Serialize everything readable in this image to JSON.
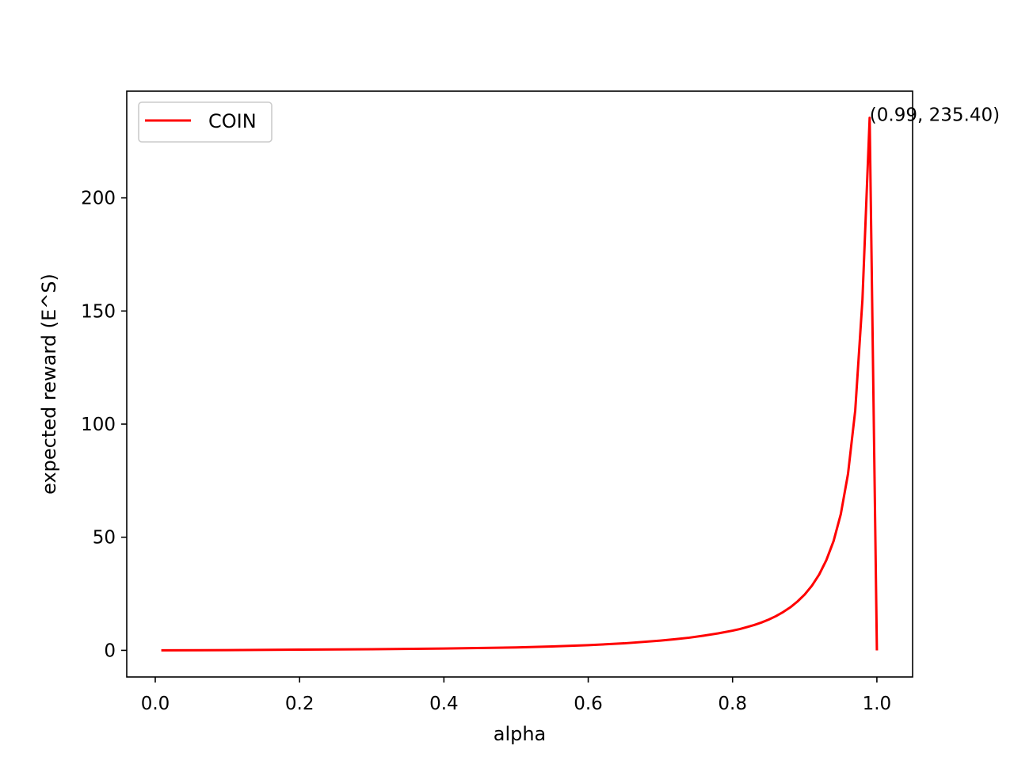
{
  "chart_data": {
    "type": "line",
    "title": "",
    "xlabel": "alpha",
    "ylabel": "expected reward (E^S)",
    "xlim": [
      -0.0395,
      1.0495
    ],
    "ylim": [
      -11.77,
      247.17
    ],
    "xticks": [
      0.0,
      0.2,
      0.4,
      0.6,
      0.8,
      1.0
    ],
    "xtick_labels": [
      "0.0",
      "0.2",
      "0.4",
      "0.6",
      "0.8",
      "1.0"
    ],
    "yticks": [
      0,
      50,
      100,
      150,
      200
    ],
    "ytick_labels": [
      "0",
      "50",
      "100",
      "150",
      "200"
    ],
    "grid": false,
    "legend": {
      "placement": "top-left",
      "entries": [
        "COIN"
      ]
    },
    "colors": {
      "series": "#ff0000"
    },
    "series": [
      {
        "name": "COIN",
        "x": [
          0.01,
          0.1,
          0.2,
          0.3,
          0.4,
          0.5,
          0.55,
          0.6,
          0.65,
          0.7,
          0.72,
          0.74,
          0.76,
          0.78,
          0.8,
          0.81,
          0.82,
          0.83,
          0.84,
          0.85,
          0.86,
          0.87,
          0.88,
          0.89,
          0.9,
          0.91,
          0.92,
          0.93,
          0.94,
          0.95,
          0.96,
          0.97,
          0.98,
          0.99,
          1.0
        ],
        "y": [
          0.0,
          0.1,
          0.3,
          0.5,
          0.8,
          1.3,
          1.7,
          2.3,
          3.1,
          4.3,
          4.9,
          5.6,
          6.5,
          7.5,
          8.7,
          9.4,
          10.3,
          11.2,
          12.3,
          13.6,
          15.1,
          16.9,
          19.0,
          21.6,
          24.7,
          28.6,
          33.5,
          39.9,
          48.3,
          60.2,
          78.0,
          106.0,
          155.0,
          235.4,
          0.5
        ]
      }
    ],
    "annotations": [
      {
        "text": "(0.99, 235.40)",
        "x": 0.99,
        "y": 235.4
      }
    ]
  }
}
